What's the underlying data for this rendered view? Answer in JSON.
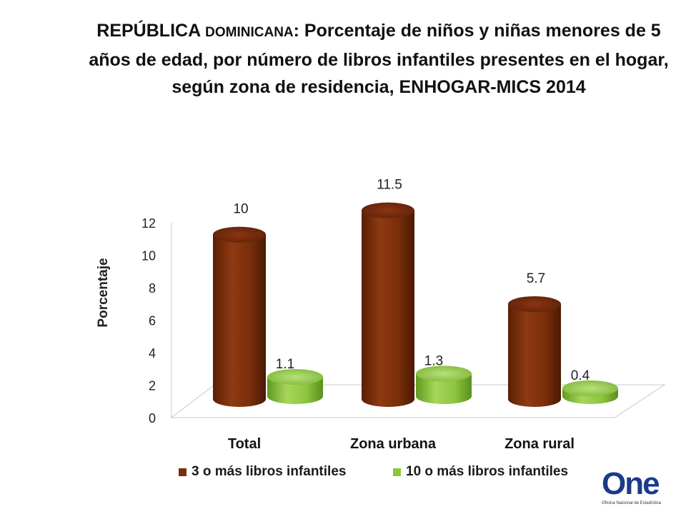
{
  "title_prefix": "REPÚBLICA",
  "title_country_small": "DOMINICANA",
  "title_rest": ": Porcentaje de niños y niñas menores de 5 años de edad, por número de libros infantiles presentes en el hogar, según zona de residencia, ENHOGAR-MICS 2014",
  "chart_data": {
    "type": "bar",
    "categories": [
      "Total",
      "Zona urbana",
      "Zona rural"
    ],
    "series": [
      {
        "name": "3 o más libros infantiles",
        "values": [
          10,
          11.5,
          5.7
        ],
        "color": "#7a2e0a"
      },
      {
        "name": "10 o más libros infantiles",
        "values": [
          1.1,
          1.3,
          0.4
        ],
        "color": "#8cc63f"
      }
    ],
    "ylabel": "Porcentaje",
    "yticks": [
      0,
      2,
      4,
      6,
      8,
      10,
      12
    ],
    "ylim": [
      0,
      12
    ],
    "legend_position": "bottom",
    "style": "3d-cylinder"
  },
  "logo": {
    "text": "One",
    "subtitle": "Oficina Nacional de Estadística"
  }
}
